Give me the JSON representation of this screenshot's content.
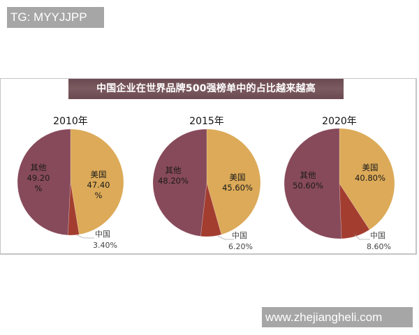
{
  "watermarks": {
    "top": "TG: MYYJJPP",
    "bottom": "www.zhejiangheli.com"
  },
  "title": "中国企业在世界品牌500强榜单中的占比越来越高",
  "colors": {
    "usa": "#dcaa58",
    "china": "#a33d30",
    "others": "#874a5a",
    "banner": "#735259"
  },
  "pies": [
    {
      "year": "2010年",
      "slices": [
        {
          "name": "美国",
          "value": 47.4,
          "label_line1": "美国",
          "label_line2": "47.40",
          "label_line3": "%"
        },
        {
          "name": "中国",
          "value": 3.4,
          "label_line1": "中国",
          "label_line2": "3.40%"
        },
        {
          "name": "其他",
          "value": 49.2,
          "label_line1": "其他",
          "label_line2": "49.20",
          "label_line3": "%"
        }
      ]
    },
    {
      "year": "2015年",
      "slices": [
        {
          "name": "美国",
          "value": 45.6,
          "label_line1": "美国",
          "label_line2": "45.60%"
        },
        {
          "name": "中国",
          "value": 6.2,
          "label_line1": "中国",
          "label_line2": "6.20%"
        },
        {
          "name": "其他",
          "value": 48.2,
          "label_line1": "其他",
          "label_line2": "48.20%"
        }
      ]
    },
    {
      "year": "2020年",
      "slices": [
        {
          "name": "美国",
          "value": 40.8,
          "label_line1": "美国",
          "label_line2": "40.80%"
        },
        {
          "name": "中国",
          "value": 8.6,
          "label_line1": "中国",
          "label_line2": "8.60%"
        },
        {
          "name": "其他",
          "value": 50.6,
          "label_line1": "其他",
          "label_line2": "50.60%"
        }
      ]
    }
  ],
  "chart_data": [
    {
      "type": "pie",
      "title": "2010年",
      "categories": [
        "美国",
        "中国",
        "其他"
      ],
      "values": [
        47.4,
        3.4,
        49.2
      ],
      "unit": "%"
    },
    {
      "type": "pie",
      "title": "2015年",
      "categories": [
        "美国",
        "中国",
        "其他"
      ],
      "values": [
        45.6,
        6.2,
        48.2
      ],
      "unit": "%"
    },
    {
      "type": "pie",
      "title": "2020年",
      "categories": [
        "美国",
        "中国",
        "其他"
      ],
      "values": [
        40.8,
        8.6,
        50.6
      ],
      "unit": "%"
    }
  ],
  "figure_title": "中国企业在世界品牌500强榜单中的占比越来越高"
}
